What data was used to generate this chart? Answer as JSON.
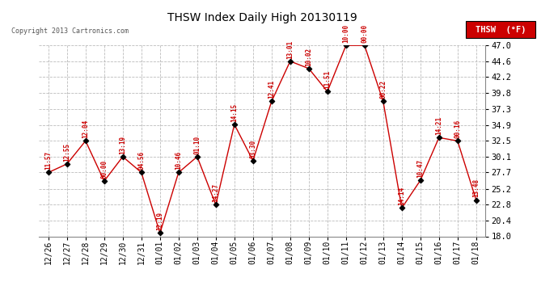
{
  "title": "THSW Index Daily High 20130119",
  "copyright": "Copyright 2013 Cartronics.com",
  "legend_label": "THSW  (°F)",
  "x_labels": [
    "12/26",
    "12/27",
    "12/28",
    "12/29",
    "12/30",
    "12/31",
    "01/01",
    "01/02",
    "01/03",
    "01/04",
    "01/05",
    "01/06",
    "01/07",
    "01/08",
    "01/09",
    "01/10",
    "01/11",
    "01/12",
    "01/13",
    "01/14",
    "01/15",
    "01/16",
    "01/17",
    "01/18"
  ],
  "y_values": [
    27.7,
    29.0,
    32.5,
    26.4,
    30.1,
    27.7,
    18.5,
    27.7,
    30.1,
    22.8,
    35.0,
    29.5,
    38.5,
    44.6,
    43.5,
    40.0,
    47.0,
    47.0,
    38.5,
    22.3,
    26.5,
    33.0,
    32.5,
    23.5
  ],
  "time_labels": [
    "11:57",
    "12:55",
    "12:04",
    "00:00",
    "13:19",
    "04:56",
    "12:19",
    "10:46",
    "01:10",
    "14:27",
    "14:15",
    "03:30",
    "12:41",
    "13:01",
    "10:02",
    "11:51",
    "10:00",
    "00:00",
    "00:22",
    "14:14",
    "10:47",
    "14:21",
    "00:16",
    "13:48"
  ],
  "y_min": 18.0,
  "y_max": 47.0,
  "y_ticks": [
    18.0,
    20.4,
    22.8,
    25.2,
    27.7,
    30.1,
    32.5,
    34.9,
    37.3,
    39.8,
    42.2,
    44.6,
    47.0
  ],
  "line_color": "#cc0000",
  "marker_color": "#000000",
  "bg_color": "#ffffff",
  "grid_color": "#bbbbbb",
  "title_color": "#000000",
  "label_color": "#cc0000",
  "legend_bg": "#cc0000",
  "legend_text_color": "#ffffff"
}
